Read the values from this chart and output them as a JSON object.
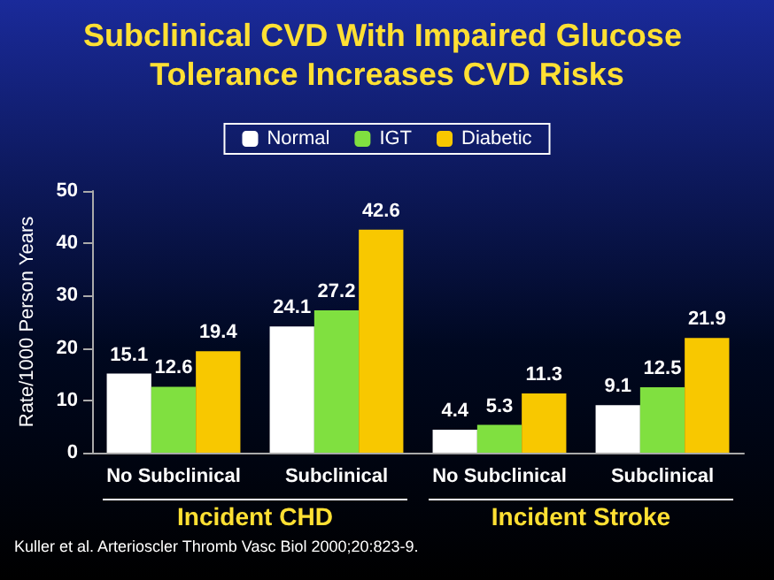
{
  "chart_data": {
    "type": "bar",
    "title": "Subclinical CVD With Impaired Glucose Tolerance Increases CVD Risks",
    "ylabel": "Rate/1000 Person Years",
    "categories": [
      "No Subclinical",
      "Subclinical",
      "No Subclinical",
      "Subclinical"
    ],
    "series": [
      {
        "name": "Normal",
        "color": "#ffffff",
        "values": [
          15.1,
          24.1,
          4.4,
          9.1
        ]
      },
      {
        "name": "IGT",
        "color": "#80e040",
        "values": [
          12.6,
          27.2,
          5.3,
          12.5
        ]
      },
      {
        "name": "Diabetic",
        "color": "#f8c800",
        "values": [
          19.4,
          42.6,
          11.3,
          21.9
        ]
      }
    ],
    "ylim": [
      0,
      50
    ],
    "yticks": [
      0,
      10,
      20,
      30,
      40,
      50
    ],
    "grid": false,
    "legend": "top",
    "data_labels": true,
    "annotations": [
      "Incident CHD",
      "Incident Stroke",
      "Kuller et al.  Arterioscler Thromb Vasc Biol  2000;20:823-9."
    ]
  }
}
